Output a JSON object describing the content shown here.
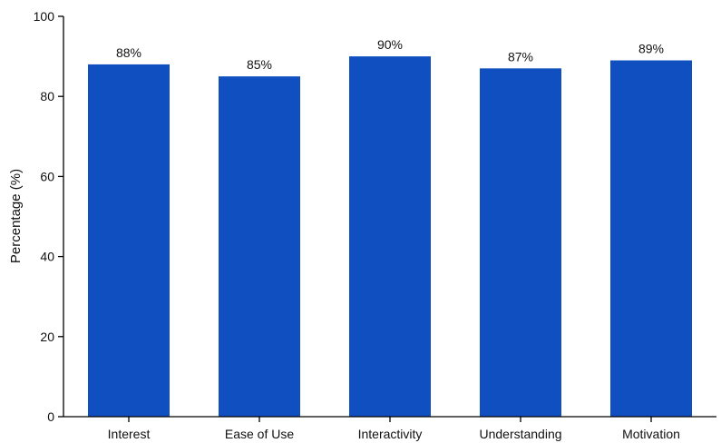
{
  "chart_data": {
    "type": "bar",
    "categories": [
      "Interest",
      "Ease of Use",
      "Interactivity",
      "Understanding",
      "Motivation"
    ],
    "values": [
      88,
      85,
      90,
      87,
      89
    ],
    "data_labels": [
      "88%",
      "85%",
      "90%",
      "87%",
      "89%"
    ],
    "title": "",
    "xlabel": "",
    "ylabel": "Percentage (%)",
    "ylim": [
      0,
      100
    ],
    "yticks": [
      0,
      20,
      40,
      60,
      80,
      100
    ],
    "grid": false,
    "bar_color": "#0f4fbf"
  }
}
